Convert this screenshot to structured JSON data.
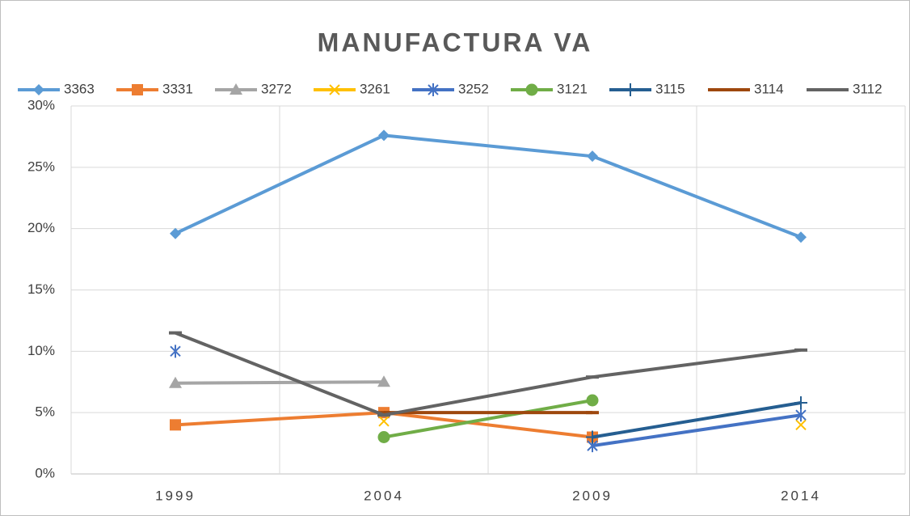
{
  "chart_data": {
    "type": "line",
    "title": "MANUFACTURA VA",
    "categories": [
      "1999",
      "2004",
      "2009",
      "2014"
    ],
    "series": [
      {
        "name": "3363",
        "color": "#5b9bd5",
        "marker": "diamond",
        "values": [
          19.6,
          27.6,
          25.9,
          19.3
        ]
      },
      {
        "name": "3331",
        "color": "#ed7d31",
        "marker": "square",
        "values": [
          4,
          5,
          3,
          null
        ]
      },
      {
        "name": "3272",
        "color": "#a5a5a5",
        "marker": "triangle",
        "values": [
          7.4,
          7.5,
          null,
          null
        ]
      },
      {
        "name": "3261",
        "color": "#ffc000",
        "marker": "x",
        "values": [
          null,
          4.3,
          null,
          4
        ]
      },
      {
        "name": "3252",
        "color": "#4472c4",
        "marker": "star",
        "values": [
          10,
          null,
          2.3,
          4.8
        ]
      },
      {
        "name": "3121",
        "color": "#70ad47",
        "marker": "circle",
        "values": [
          null,
          3,
          6,
          null
        ]
      },
      {
        "name": "3115",
        "color": "#255e91",
        "marker": "plus",
        "values": [
          null,
          null,
          3,
          5.8
        ]
      },
      {
        "name": "3114",
        "color": "#9e480e",
        "marker": "dash",
        "values": [
          null,
          5,
          5,
          null
        ]
      },
      {
        "name": "3112",
        "color": "#636363",
        "marker": "dash",
        "values": [
          11.5,
          4.8,
          7.9,
          10.1
        ]
      }
    ],
    "ylim": [
      0,
      30
    ],
    "yticks": [
      {
        "value": 0,
        "label": "0%"
      },
      {
        "value": 5,
        "label": "5%"
      },
      {
        "value": 10,
        "label": "10%"
      },
      {
        "value": 15,
        "label": "15%"
      },
      {
        "value": 20,
        "label": "20%"
      },
      {
        "value": 25,
        "label": "25%"
      },
      {
        "value": 30,
        "label": "30%"
      }
    ],
    "grid": true,
    "legend": "top"
  }
}
